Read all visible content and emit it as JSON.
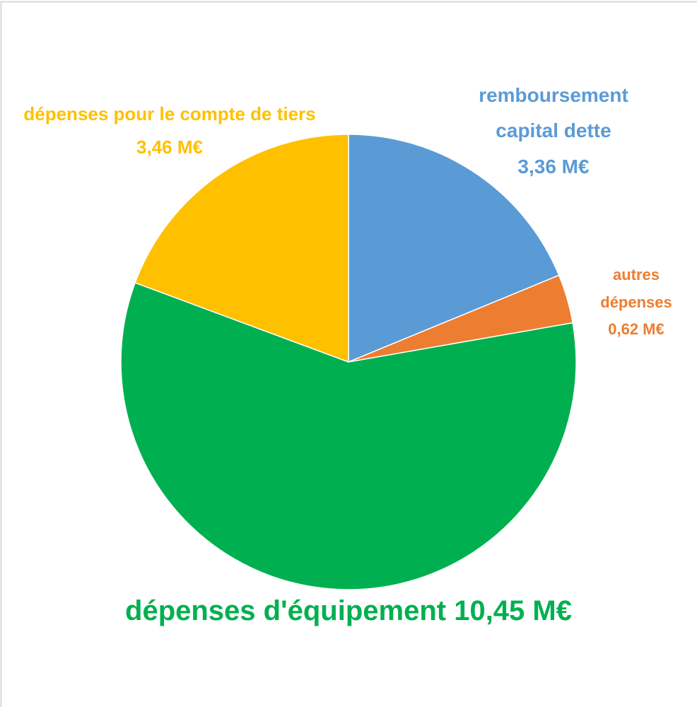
{
  "chart_data": {
    "type": "pie",
    "categories": [
      "remboursement capital dette",
      "autres dépenses",
      "dépenses d'équipement",
      "dépenses pour le compte de tiers"
    ],
    "values": [
      3.36,
      0.62,
      10.45,
      3.46
    ],
    "value_labels": [
      "3,36 M€",
      "0,62 M€",
      "10,45 M€",
      "3,46 M€"
    ],
    "colors": [
      "#5b9bd5",
      "#ed7d31",
      "#00b050",
      "#ffc000"
    ]
  }
}
